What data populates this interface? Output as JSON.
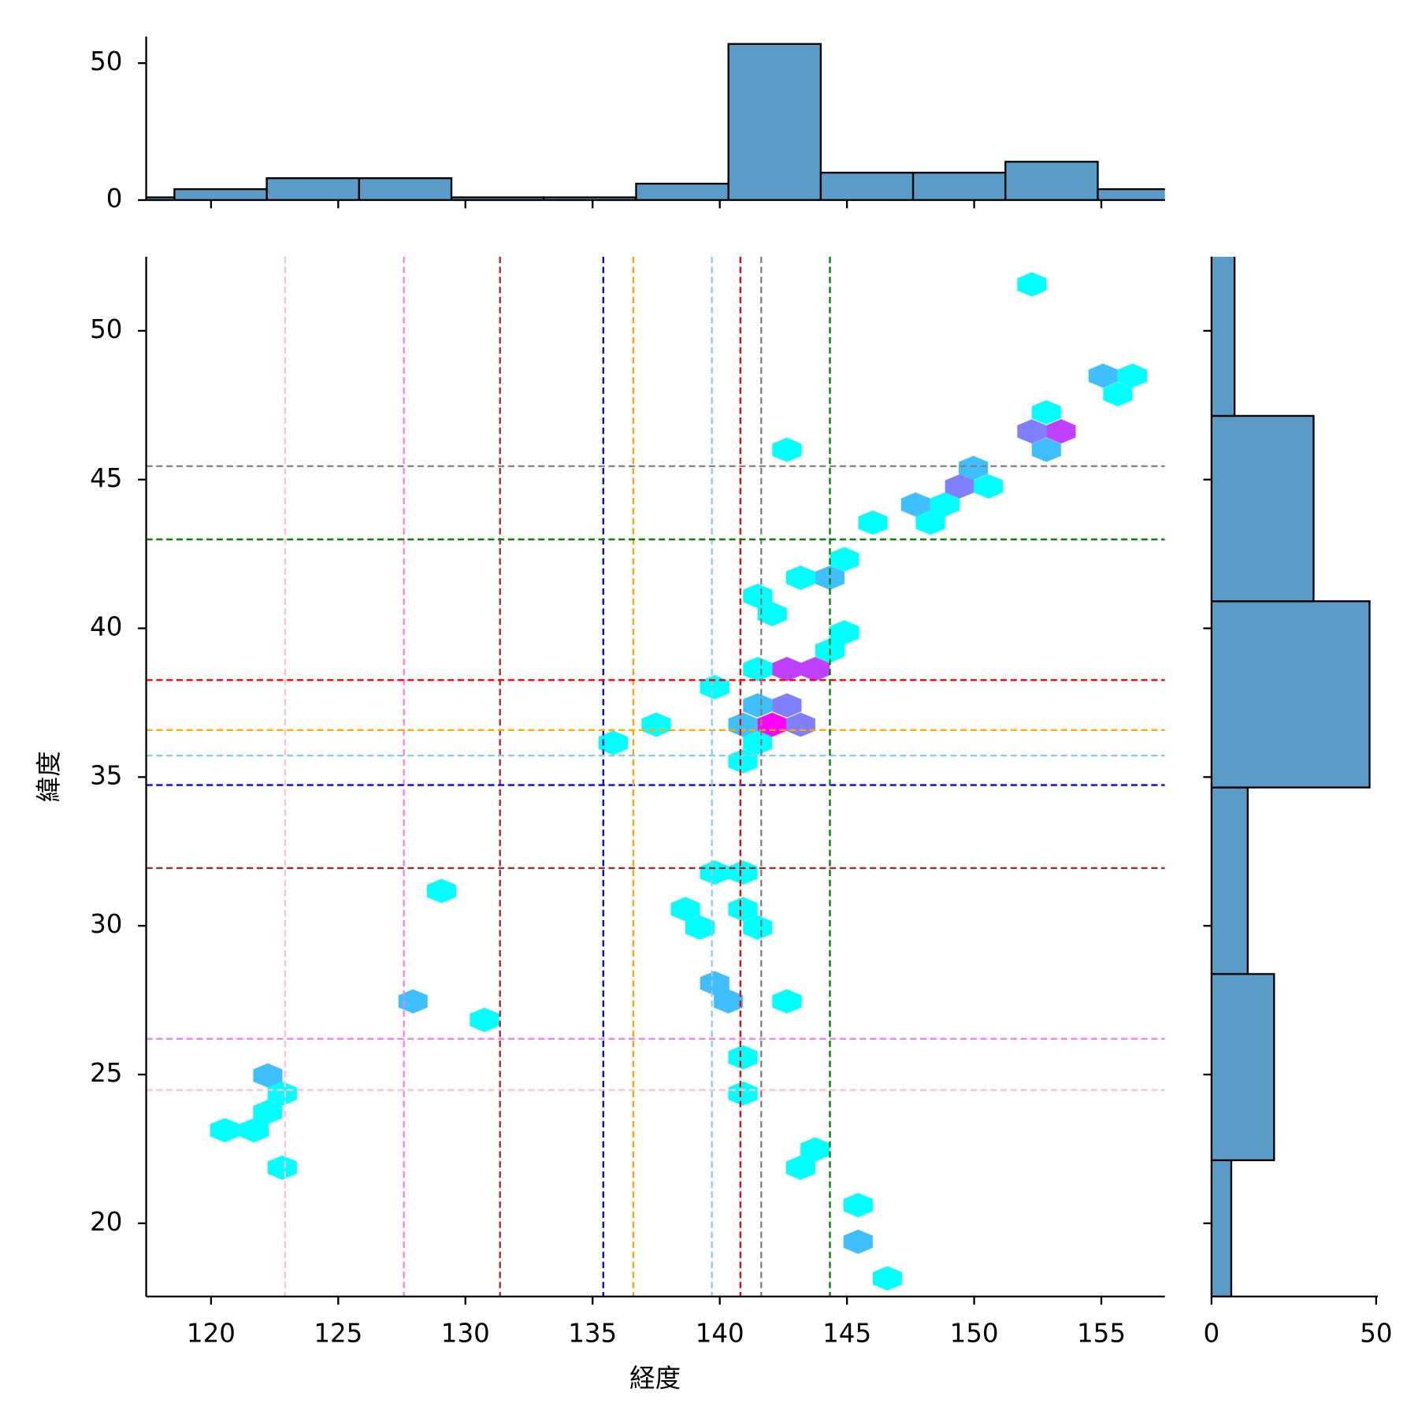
{
  "chart_data": [
    {
      "type": "hexbin",
      "xlabel": "経度",
      "ylabel": "緯度",
      "x": [
        152.27,
        155.07,
        156.22,
        155.65,
        152.84,
        152.27,
        153.42,
        152.84,
        142.64,
        149.97,
        149.43,
        150.56,
        147.7,
        148.85,
        148.28,
        146.02,
        144.9,
        143.18,
        144.33,
        141.49,
        142.06,
        144.9,
        144.33,
        141.49,
        142.64,
        143.75,
        139.8,
        141.49,
        142.64,
        137.5,
        140.91,
        142.06,
        143.18,
        135.81,
        141.49,
        140.91,
        139.8,
        140.91,
        129.06,
        138.65,
        140.91,
        139.22,
        141.49,
        139.8,
        140.34,
        127.94,
        142.64,
        130.75,
        140.91,
        122.23,
        122.8,
        140.91,
        122.23,
        120.54,
        121.69,
        122.8,
        143.75,
        143.18,
        145.44,
        145.44,
        146.59
      ],
      "y": [
        51.56,
        48.49,
        48.49,
        47.87,
        47.26,
        46.62,
        46.62,
        46.0,
        46.0,
        45.39,
        44.77,
        44.77,
        44.16,
        44.16,
        43.55,
        43.55,
        42.32,
        41.7,
        41.7,
        41.09,
        40.48,
        39.86,
        39.25,
        38.63,
        38.63,
        38.63,
        38.02,
        37.41,
        37.41,
        36.76,
        36.76,
        36.76,
        36.76,
        36.15,
        36.15,
        35.53,
        31.79,
        31.79,
        31.17,
        30.56,
        30.56,
        29.94,
        29.94,
        28.07,
        27.46,
        27.46,
        27.46,
        26.84,
        25.58,
        24.97,
        24.36,
        24.36,
        23.74,
        23.13,
        23.13,
        21.87,
        22.48,
        21.87,
        20.61,
        19.38,
        18.15
      ],
      "values": [
        1,
        2,
        1,
        1,
        1,
        3,
        4,
        2,
        1,
        2,
        3,
        1,
        2,
        1,
        1,
        1,
        1,
        1,
        2,
        1,
        1,
        1,
        1,
        1,
        4,
        4,
        1,
        2,
        3,
        1,
        2,
        5,
        3,
        1,
        1,
        1,
        1,
        1,
        1,
        1,
        1,
        1,
        1,
        2,
        2,
        2,
        1,
        1,
        1,
        2,
        1,
        1,
        1,
        1,
        1,
        1,
        1,
        1,
        1,
        2,
        1
      ],
      "cmap": "cool",
      "clim": [
        1,
        5
      ],
      "xlim": [
        117.45,
        157.5
      ],
      "xticks": [
        120,
        125,
        130,
        135,
        140,
        145,
        150,
        155
      ],
      "ylim": [
        17.54,
        52.49
      ],
      "yticks": [
        20,
        25,
        30,
        35,
        40,
        45,
        50
      ],
      "reference_lines": [
        {
          "color": "pink",
          "x": 122.91,
          "y": 24.48
        },
        {
          "color": "violet",
          "x": 127.58,
          "y": 26.2
        },
        {
          "color": "brown",
          "x": 131.36,
          "y": 31.94
        },
        {
          "color": "blue",
          "x": 135.42,
          "y": 34.73
        },
        {
          "color": "orange",
          "x": 136.6,
          "y": 36.58
        },
        {
          "color": "skyblue",
          "x": 139.69,
          "y": 35.72
        },
        {
          "color": "red",
          "x": 140.81,
          "y": 38.26
        },
        {
          "color": "gray",
          "x": 141.63,
          "y": 45.45
        },
        {
          "color": "green",
          "x": 144.33,
          "y": 42.99
        }
      ]
    },
    {
      "type": "histogram",
      "orientation": "vertical",
      "color": "#5a9bc8",
      "bins": [
        114.93,
        118.56,
        122.19,
        125.82,
        129.45,
        133.08,
        136.71,
        140.34,
        143.97,
        147.6,
        151.23,
        154.86,
        158.49
      ],
      "values": [
        1,
        4,
        8,
        8,
        1,
        1,
        6,
        57,
        10,
        10,
        14,
        4
      ],
      "xlim": [
        117.45,
        157.5
      ],
      "xticks": [
        120,
        125,
        130,
        135,
        140,
        145,
        150,
        155
      ],
      "ylim": [
        0,
        59.7
      ],
      "yticks": [
        0,
        50
      ]
    },
    {
      "type": "histogram",
      "orientation": "horizontal",
      "color": "#5a9bc8",
      "bins": [
        15.86,
        22.12,
        28.38,
        34.65,
        40.91,
        47.14,
        53.4
      ],
      "values": [
        6,
        19,
        11,
        48,
        31,
        7
      ],
      "ylim": [
        17.54,
        52.49
      ],
      "yticks": [
        20,
        25,
        30,
        35,
        40,
        45,
        50
      ],
      "xlim": [
        0,
        50.5
      ],
      "xticks": [
        0,
        50
      ]
    }
  ]
}
